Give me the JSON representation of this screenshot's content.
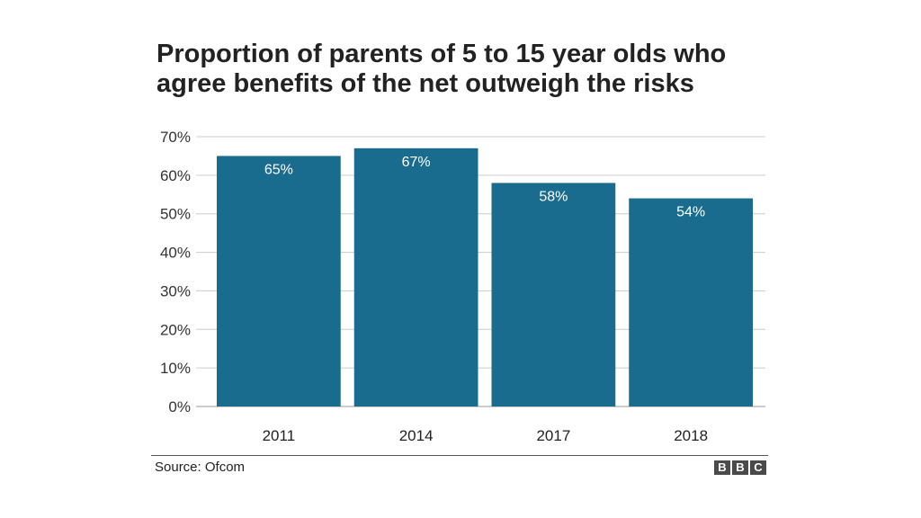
{
  "chart_data": {
    "type": "bar",
    "title_lines": [
      "Proportion of parents of 5 to 15 year olds who",
      "agree benefits of the net outweigh the risks"
    ],
    "categories": [
      "2011",
      "2014",
      "2017",
      "2018"
    ],
    "values": [
      65,
      67,
      58,
      54
    ],
    "value_labels": [
      "65%",
      "67%",
      "58%",
      "54%"
    ],
    "yticks": [
      0,
      10,
      20,
      30,
      40,
      50,
      60,
      70
    ],
    "ytick_labels": [
      "0%",
      "10%",
      "20%",
      "30%",
      "40%",
      "50%",
      "60%",
      "70%"
    ],
    "ylim": [
      0,
      70
    ],
    "xlabel": "",
    "ylabel": "",
    "grid": true,
    "bar_color": "#1a6c8f",
    "grid_color": "#cccccc"
  },
  "footer": {
    "source": "Source: Ofcom",
    "logo_letters": [
      "B",
      "B",
      "C"
    ]
  }
}
